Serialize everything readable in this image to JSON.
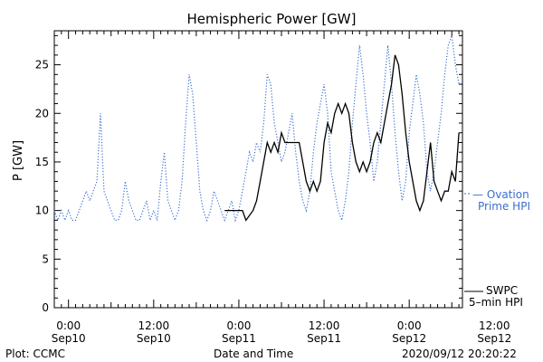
{
  "chart_data": {
    "type": "line",
    "title": "Hemispheric Power [GW]",
    "ylabel": "P [GW]",
    "xlabel": "Date and Time",
    "ylim": [
      0,
      28.5
    ],
    "yticks": [
      0,
      5,
      10,
      15,
      20,
      25
    ],
    "x_unit": "hours since 2020-09-09 22:00 UTC",
    "xlim": [
      0,
      57.5
    ],
    "xticks": [
      {
        "x": 2,
        "time": "0:00",
        "date": "Sep10"
      },
      {
        "x": 14,
        "time": "12:00",
        "date": "Sep10"
      },
      {
        "x": 26,
        "time": "0:00",
        "date": "Sep11"
      },
      {
        "x": 38,
        "time": "12:00",
        "date": "Sep11"
      },
      {
        "x": 50,
        "time": "0:00",
        "date": "Sep12"
      },
      {
        "x": 62,
        "time": "12:00",
        "date": "Sep12"
      }
    ],
    "series": [
      {
        "name": "Ovation Prime HPI",
        "legend": [
          "— Ovation",
          "Prime HPI"
        ],
        "color": "#3a6fd0",
        "style": "dotted",
        "points": [
          [
            0,
            10
          ],
          [
            0.5,
            9
          ],
          [
            1,
            10
          ],
          [
            1.5,
            9
          ],
          [
            2,
            10
          ],
          [
            2.5,
            9
          ],
          [
            3,
            9
          ],
          [
            3.5,
            10
          ],
          [
            4,
            11
          ],
          [
            4.5,
            12
          ],
          [
            5,
            11
          ],
          [
            5.5,
            12
          ],
          [
            6,
            13
          ],
          [
            6.5,
            20
          ],
          [
            7,
            12
          ],
          [
            7.5,
            11
          ],
          [
            8,
            10
          ],
          [
            8.5,
            9
          ],
          [
            9,
            9
          ],
          [
            9.5,
            10
          ],
          [
            10,
            13
          ],
          [
            10.5,
            11
          ],
          [
            11,
            10
          ],
          [
            11.5,
            9
          ],
          [
            12,
            9
          ],
          [
            12.5,
            10
          ],
          [
            13,
            11
          ],
          [
            13.5,
            9
          ],
          [
            14,
            10
          ],
          [
            14.5,
            9
          ],
          [
            15,
            13
          ],
          [
            15.5,
            16
          ],
          [
            16,
            11
          ],
          [
            16.5,
            10
          ],
          [
            17,
            9
          ],
          [
            17.5,
            10
          ],
          [
            18,
            13
          ],
          [
            18.5,
            19
          ],
          [
            19,
            24
          ],
          [
            19.5,
            22
          ],
          [
            20,
            17
          ],
          [
            20.5,
            12
          ],
          [
            21,
            10
          ],
          [
            21.5,
            9
          ],
          [
            22,
            10
          ],
          [
            22.5,
            12
          ],
          [
            23,
            11
          ],
          [
            23.5,
            10
          ],
          [
            24,
            9
          ],
          [
            24.5,
            10
          ],
          [
            25,
            11
          ],
          [
            25.5,
            9
          ],
          [
            26,
            10
          ],
          [
            26.5,
            12
          ],
          [
            27,
            14
          ],
          [
            27.5,
            16
          ],
          [
            28,
            15
          ],
          [
            28.5,
            17
          ],
          [
            29,
            16
          ],
          [
            29.5,
            19
          ],
          [
            30,
            24
          ],
          [
            30.5,
            23
          ],
          [
            31,
            19
          ],
          [
            31.5,
            17
          ],
          [
            32,
            15
          ],
          [
            32.5,
            16
          ],
          [
            33,
            18
          ],
          [
            33.5,
            20
          ],
          [
            34,
            16
          ],
          [
            34.5,
            13
          ],
          [
            35,
            11
          ],
          [
            35.5,
            10
          ],
          [
            36,
            12
          ],
          [
            36.5,
            16
          ],
          [
            37,
            19
          ],
          [
            37.5,
            21
          ],
          [
            38,
            23
          ],
          [
            38.5,
            20
          ],
          [
            39,
            14
          ],
          [
            39.5,
            12
          ],
          [
            40,
            10
          ],
          [
            40.5,
            9
          ],
          [
            41,
            11
          ],
          [
            41.5,
            14
          ],
          [
            42,
            19
          ],
          [
            42.5,
            23
          ],
          [
            43,
            27
          ],
          [
            43.5,
            24
          ],
          [
            44,
            20
          ],
          [
            44.5,
            17
          ],
          [
            45,
            13
          ],
          [
            45.5,
            15
          ],
          [
            46,
            19
          ],
          [
            46.5,
            23
          ],
          [
            47,
            27
          ],
          [
            47.5,
            23
          ],
          [
            48,
            18
          ],
          [
            48.5,
            14
          ],
          [
            49,
            11
          ],
          [
            49.5,
            13
          ],
          [
            50,
            18
          ],
          [
            50.5,
            21
          ],
          [
            51,
            24
          ],
          [
            51.5,
            22
          ],
          [
            52,
            19
          ],
          [
            52.5,
            14
          ],
          [
            53,
            12
          ],
          [
            53.5,
            14
          ],
          [
            54,
            17
          ],
          [
            54.5,
            20
          ],
          [
            55,
            24
          ],
          [
            55.5,
            27
          ],
          [
            56,
            28
          ],
          [
            56.5,
            25
          ],
          [
            57,
            23
          ]
        ]
      },
      {
        "name": "SWPC 5-min HPI",
        "legend": [
          "SWPC",
          "5–min HPI"
        ],
        "color": "#000000",
        "style": "solid",
        "points": [
          [
            24,
            10
          ],
          [
            25,
            10
          ],
          [
            26.5,
            10
          ],
          [
            27,
            9
          ],
          [
            28,
            10
          ],
          [
            28.5,
            11
          ],
          [
            29,
            13
          ],
          [
            29.5,
            15
          ],
          [
            30,
            17
          ],
          [
            30.5,
            16
          ],
          [
            31,
            17
          ],
          [
            31.5,
            16
          ],
          [
            32,
            18
          ],
          [
            32.5,
            17
          ],
          [
            33,
            17
          ],
          [
            34,
            17
          ],
          [
            34.5,
            17
          ],
          [
            35,
            15
          ],
          [
            35.5,
            13
          ],
          [
            36,
            12
          ],
          [
            36.5,
            13
          ],
          [
            37,
            12
          ],
          [
            37.5,
            13
          ],
          [
            38,
            17
          ],
          [
            38.5,
            19
          ],
          [
            39,
            18
          ],
          [
            39.5,
            20
          ],
          [
            40,
            21
          ],
          [
            40.5,
            20
          ],
          [
            41,
            21
          ],
          [
            41.5,
            20
          ],
          [
            42,
            17
          ],
          [
            42.5,
            15
          ],
          [
            43,
            14
          ],
          [
            43.5,
            15
          ],
          [
            44,
            14
          ],
          [
            44.5,
            15
          ],
          [
            45,
            17
          ],
          [
            45.5,
            18
          ],
          [
            46,
            17
          ],
          [
            46.5,
            19
          ],
          [
            47,
            21
          ],
          [
            47.5,
            23
          ],
          [
            48,
            26
          ],
          [
            48.5,
            25
          ],
          [
            49,
            22
          ],
          [
            49.5,
            18
          ],
          [
            50,
            15
          ],
          [
            50.5,
            13
          ],
          [
            51,
            11
          ],
          [
            51.5,
            10
          ],
          [
            52,
            11
          ],
          [
            52.5,
            14
          ],
          [
            53,
            17
          ],
          [
            53.5,
            13
          ],
          [
            54,
            12
          ],
          [
            54.5,
            11
          ],
          [
            55,
            12
          ],
          [
            55.5,
            12
          ],
          [
            56,
            14
          ],
          [
            56.5,
            13
          ],
          [
            57,
            18
          ]
        ]
      }
    ]
  },
  "footer": {
    "left": "Plot: CCMC",
    "right": "2020/09/12 20:20:22"
  }
}
